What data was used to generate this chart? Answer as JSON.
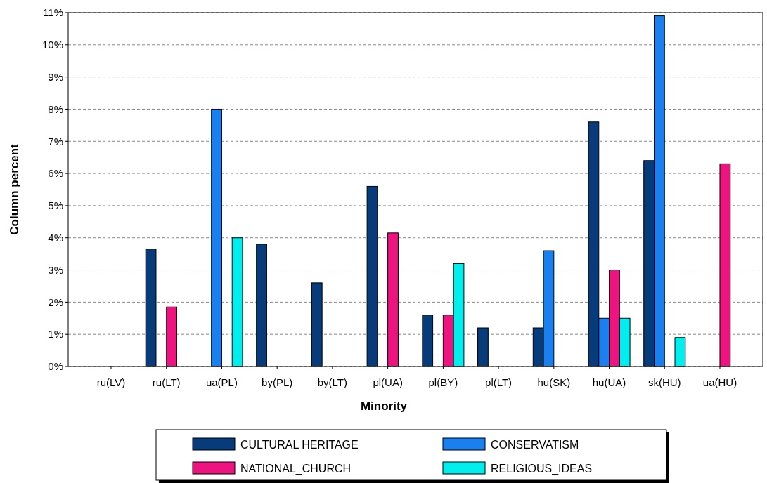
{
  "chart_data": {
    "type": "bar",
    "xlabel": "Minority",
    "ylabel": "Column percent",
    "categories": [
      "ru(LV)",
      "ru(LT)",
      "ua(PL)",
      "by(PL)",
      "by(LT)",
      "pl(UA)",
      "pl(BY)",
      "pl(LT)",
      "hu(SK)",
      "hu(UA)",
      "sk(HU)",
      "ua(HU)"
    ],
    "series": [
      {
        "name": "CULTURAL HERITAGE",
        "color": "#073b7a",
        "values": [
          0,
          3.65,
          0,
          3.8,
          2.6,
          5.6,
          1.6,
          1.2,
          1.2,
          7.6,
          6.4,
          0
        ]
      },
      {
        "name": "CONSERVATISM",
        "color": "#1a80f0",
        "values": [
          0,
          0,
          8.0,
          0,
          0,
          0,
          0,
          0,
          3.6,
          1.5,
          10.9,
          0
        ]
      },
      {
        "name": "NATIONAL_CHURCH",
        "color": "#ee1480",
        "values": [
          0,
          1.85,
          0,
          0,
          0,
          4.15,
          1.6,
          0,
          0,
          3.0,
          0,
          6.3
        ]
      },
      {
        "name": "RELIGIOUS_IDEAS",
        "color": "#00eeee",
        "values": [
          0,
          0,
          4.0,
          0,
          0,
          0,
          3.2,
          0,
          0,
          1.5,
          0.9,
          0
        ]
      }
    ],
    "ylim": [
      0,
      11
    ],
    "yticks": [
      {
        "value": 0,
        "label": "0%"
      },
      {
        "value": 1,
        "label": "1%"
      },
      {
        "value": 2,
        "label": "2%"
      },
      {
        "value": 3,
        "label": "3%"
      },
      {
        "value": 4,
        "label": "4%"
      },
      {
        "value": 5,
        "label": "5%"
      },
      {
        "value": 6,
        "label": "6%"
      },
      {
        "value": 7,
        "label": "7%"
      },
      {
        "value": 8,
        "label": "8%"
      },
      {
        "value": 9,
        "label": "9%"
      },
      {
        "value": 10,
        "label": "10%"
      },
      {
        "value": 11,
        "label": "11%"
      }
    ],
    "grid": "y",
    "legend": "bottom"
  }
}
